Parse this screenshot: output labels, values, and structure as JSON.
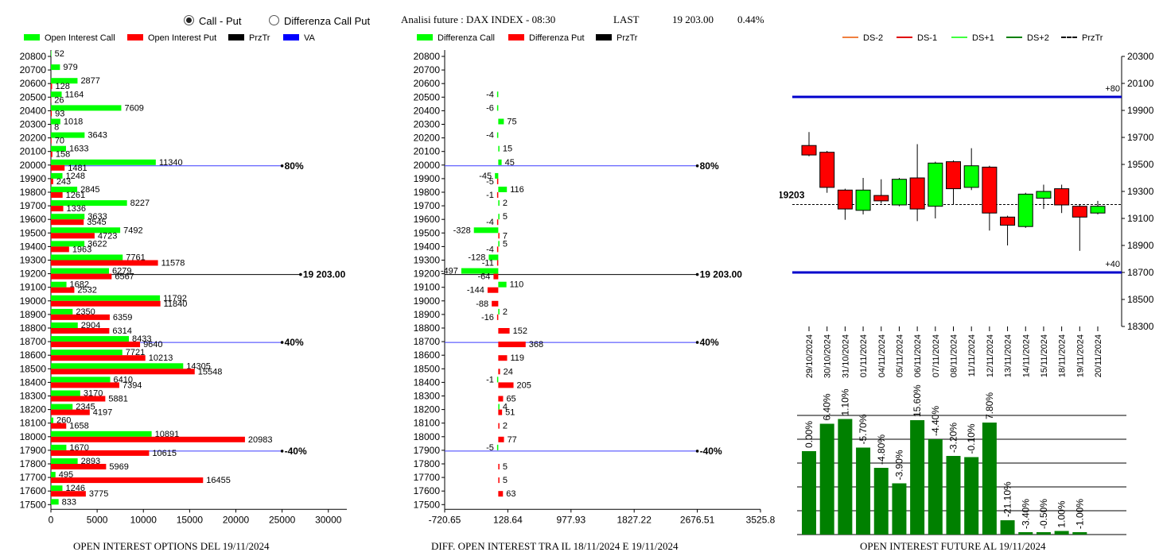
{
  "header": {
    "radio_call_put": "Call - Put",
    "radio_diff": "Differenza Call Put",
    "title": "Analisi future : DAX INDEX - 08:30",
    "last_label": "LAST",
    "last_value": "19 203.00",
    "last_change": "0.44%"
  },
  "legend_oi": {
    "call": "Open Interest Call",
    "put": "Open Interest Put",
    "przt": "PrzTr",
    "va": "VA"
  },
  "legend_diff": {
    "call": "Differenza Call",
    "put": "Differenza Put",
    "przt": "PrzTr"
  },
  "legend_future": {
    "ds_m2": "DS-2",
    "ds_m1": "DS-1",
    "ds_p1": "DS+1",
    "ds_p2": "DS+2",
    "przt": "PrzTr"
  },
  "captions": {
    "oi": "OPEN INTEREST OPTIONS DEL 19/11/2024",
    "diff": "DIFF. OPEN INTEREST TRA IL 18/11/2024 E 19/11/2024",
    "future": "OPEN INTEREST FUTURE AL 19/11/2024"
  },
  "colors": {
    "call": "#00ff00",
    "put": "#ff0000",
    "przt": "#000000",
    "va": "#0000ff",
    "candle_up": "#00ff00",
    "candle_down": "#ff0000",
    "oi_bar": "#008000",
    "ds_m2": "#f08040",
    "ds_m1": "#e00000",
    "ds_p1": "#40ff40",
    "ds_p2": "#008000"
  },
  "chart_data": [
    {
      "type": "bar",
      "orientation": "horizontal",
      "strikes": [
        20800,
        20700,
        20600,
        20500,
        20400,
        20300,
        20200,
        20100,
        20000,
        19900,
        19800,
        19700,
        19600,
        19500,
        19400,
        19300,
        19200,
        19100,
        19000,
        18900,
        18800,
        18700,
        18600,
        18500,
        18400,
        18300,
        18200,
        18100,
        18000,
        17900,
        17800,
        17700,
        17600,
        17500
      ],
      "series": [
        {
          "name": "Open Interest Call",
          "values": [
            52,
            979,
            2877,
            1164,
            7609,
            1018,
            3643,
            1633,
            11340,
            1248,
            2845,
            8227,
            3633,
            7492,
            3622,
            7761,
            6279,
            1682,
            11792,
            2350,
            2904,
            8433,
            7721,
            14305,
            6410,
            3170,
            2345,
            260,
            10891,
            1670,
            2893,
            495,
            1246,
            833
          ]
        },
        {
          "name": "Open Interest Put",
          "values": [
            null,
            null,
            128,
            26,
            93,
            8,
            70,
            158,
            1481,
            243,
            1261,
            1336,
            3545,
            4723,
            1963,
            11578,
            6567,
            2532,
            11840,
            6359,
            6314,
            9640,
            10213,
            15548,
            7394,
            5881,
            4197,
            1658,
            20983,
            10615,
            5969,
            16455,
            3775,
            null
          ]
        }
      ],
      "xticks": [
        0,
        5000,
        10000,
        15000,
        20000,
        25000,
        30000
      ],
      "xlim": [
        0,
        32000
      ],
      "level_lines": [
        {
          "strike": 20000,
          "label": "80%",
          "to": 25000
        },
        {
          "strike": 19200,
          "label": "19 203.00",
          "to": 27000
        },
        {
          "strike": 18700,
          "label": "40%",
          "to": 25000
        },
        {
          "strike": 17900,
          "label": "-40%",
          "to": 25000
        }
      ]
    },
    {
      "type": "bar",
      "orientation": "horizontal",
      "strikes": [
        20800,
        20700,
        20600,
        20500,
        20400,
        20300,
        20200,
        20100,
        20000,
        19900,
        19800,
        19700,
        19600,
        19500,
        19400,
        19300,
        19200,
        19100,
        19000,
        18900,
        18800,
        18700,
        18600,
        18500,
        18400,
        18300,
        18200,
        18100,
        18000,
        17900,
        17800,
        17700,
        17600,
        17500
      ],
      "series": [
        {
          "name": "Differenza Call",
          "values": [
            null,
            null,
            null,
            -4,
            -6,
            75,
            -4,
            15,
            45,
            -45,
            116,
            2,
            5,
            -328,
            5,
            -128,
            -497,
            110,
            null,
            2,
            null,
            null,
            null,
            null,
            -1,
            null,
            4,
            null,
            null,
            -5,
            null,
            null,
            null,
            null
          ]
        },
        {
          "name": "Differenza Put",
          "values": [
            null,
            null,
            null,
            null,
            null,
            null,
            null,
            null,
            null,
            -5,
            -1,
            null,
            -4,
            7,
            -4,
            -11,
            -64,
            -144,
            -88,
            -16,
            152,
            368,
            119,
            24,
            205,
            65,
            51,
            2,
            77,
            null,
            5,
            5,
            63,
            null
          ]
        }
      ],
      "xticks": [
        -720.65,
        128.64,
        977.93,
        1827.22,
        2676.51,
        3525.8
      ],
      "xlim": [
        -720.65,
        3525.8
      ],
      "level_lines": [
        {
          "strike": 20000,
          "label": "80%",
          "to": 2676.51
        },
        {
          "strike": 19200,
          "label": "19 203.00",
          "to": 2676.51
        },
        {
          "strike": 18700,
          "label": "40%",
          "to": 2676.51
        },
        {
          "strike": 17900,
          "label": "-40%",
          "to": 2676.51
        }
      ]
    },
    {
      "type": "candlestick",
      "dates": [
        "29/10/2024",
        "30/10/2024",
        "31/10/2024",
        "01/11/2024",
        "04/11/2024",
        "05/11/2024",
        "06/11/2024",
        "07/11/2024",
        "08/11/2024",
        "11/11/2024",
        "12/11/2024",
        "13/11/2024",
        "14/11/2024",
        "15/11/2024",
        "18/11/2024",
        "19/11/2024",
        "20/11/2024"
      ],
      "candles": [
        {
          "o": 19640,
          "c": 19570,
          "h": 19740,
          "l": 19560
        },
        {
          "o": 19590,
          "c": 19330,
          "h": 19600,
          "l": 19290
        },
        {
          "o": 19310,
          "c": 19170,
          "h": 19320,
          "l": 19090
        },
        {
          "o": 19160,
          "c": 19310,
          "h": 19400,
          "l": 19130
        },
        {
          "o": 19270,
          "c": 19230,
          "h": 19390,
          "l": 19210
        },
        {
          "o": 19200,
          "c": 19390,
          "h": 19400,
          "l": 19190
        },
        {
          "o": 19400,
          "c": 19170,
          "h": 19650,
          "l": 19080
        },
        {
          "o": 19190,
          "c": 19510,
          "h": 19520,
          "l": 19100
        },
        {
          "o": 19520,
          "c": 19320,
          "h": 19530,
          "l": 19200
        },
        {
          "o": 19330,
          "c": 19490,
          "h": 19620,
          "l": 19310
        },
        {
          "o": 19480,
          "c": 19140,
          "h": 19490,
          "l": 19010
        },
        {
          "o": 19110,
          "c": 19050,
          "h": 19120,
          "l": 18900
        },
        {
          "o": 19040,
          "c": 19280,
          "h": 19290,
          "l": 19030
        },
        {
          "o": 19250,
          "c": 19300,
          "h": 19350,
          "l": 19170
        },
        {
          "o": 19320,
          "c": 19200,
          "h": 19350,
          "l": 19140
        },
        {
          "o": 19190,
          "c": 19110,
          "h": 19200,
          "l": 18860
        },
        {
          "o": 19140,
          "c": 19190,
          "h": 19230,
          "l": 19130
        }
      ],
      "yticks": [
        18300,
        18500,
        18700,
        18900,
        19100,
        19300,
        19500,
        19700,
        19900,
        20100,
        20300
      ],
      "ylim": [
        18300,
        20300
      ],
      "przt": 19203,
      "przt_label": "19203",
      "ds_lines": [
        {
          "value": 20000,
          "label": "+80"
        },
        {
          "value": 18700,
          "label": "+40"
        }
      ]
    },
    {
      "type": "bar",
      "categories": [
        "29/10/2024",
        "30/10/2024",
        "31/10/2024",
        "01/11/2024",
        "04/11/2024",
        "05/11/2024",
        "06/11/2024",
        "07/11/2024",
        "08/11/2024",
        "11/11/2024",
        "12/11/2024",
        "13/11/2024",
        "14/11/2024",
        "15/11/2024",
        "18/11/2024",
        "19/11/2024",
        "20/11/2024"
      ],
      "labels": [
        "0.00%",
        "6.40%",
        "1.10%",
        "-5.70%",
        "-4.80%",
        "-3.90%",
        "15.60%",
        "-4.40%",
        "-3.20%",
        "-0.10%",
        "7.80%",
        "-21.10%",
        "-3.40%",
        "-0.50%",
        "1.00%",
        "-1.00%"
      ],
      "values": [
        0.7,
        0.93,
        0.97,
        0.73,
        0.56,
        0.43,
        0.96,
        0.8,
        0.66,
        0.65,
        0.94,
        0.12,
        0.02,
        0.0,
        0.03,
        0.0
      ],
      "grid": true
    }
  ]
}
